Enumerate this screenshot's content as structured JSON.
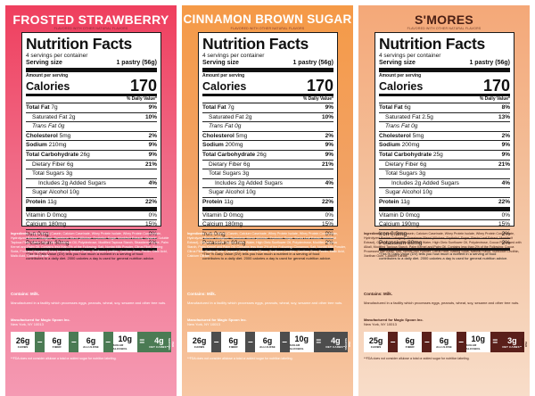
{
  "panels": [
    {
      "flavor": "FROSTED STRAWBERRY",
      "flavor_sub": "FLAVORED WITH OTHER NATURAL FLAVORS",
      "nf": {
        "title": "Nutrition Facts",
        "servings": "4 servings per container",
        "serving_size_label": "Serving size",
        "serving_size_value": "1 pastry (56g)",
        "amount_per_serving": "Amount per serving",
        "calories_label": "Calories",
        "calories_value": "170",
        "dv_header": "% Daily Value*",
        "total_fat": "7g",
        "total_fat_dv": "9%",
        "sat_fat": "2g",
        "sat_fat_dv": "10%",
        "trans_fat": "0g",
        "cholesterol": "5mg",
        "cholesterol_dv": "2%",
        "sodium": "210mg",
        "sodium_dv": "9%",
        "total_carb": "26g",
        "total_carb_dv": "9%",
        "fiber": "6g",
        "fiber_dv": "21%",
        "total_sugars": "3g",
        "added_sugars": "2g",
        "added_sugars_dv": "4%",
        "sugar_alcohol": "10g",
        "protein": "11g",
        "protein_dv": "22%",
        "vit_d": "0mcg",
        "vit_d_dv": "0%",
        "calcium": "180mg",
        "calcium_dv": "15%",
        "iron": "0mg",
        "iron_dv": "0%",
        "potassium": "60mg",
        "potassium_dv": "2%",
        "footnote": "*The % Daily Value (DV) tells you how much a nutrient in a serving of food contributes to a daily diet. 2000 calories a day is used for general nutrition advice."
      },
      "ingredients_lead": "Ingredients:",
      "ingredients": "Protein Blend (Casein, Calcium Caseinate, Whey Protein Isolate, Whey Protein Concentrate, Hydrolyzed Bovine Collagen), Sweetener Blend (Allulose, Erythritol, Sugar, Monkfruit Extract), Glycerin, Soluble Tapioca Fiber, Water, High Oleic Sunflower Oil, Polydextrose, Modified Tapioca Starch, Strawberry Puree, Palm Kernel and Palm Oil. Contains less than 2% of the Following: Salt, Nonfat Milk Powder, Citrus Fiber, Baking Soda, Fruit and Vegetable Juice for color, Natural Flavor, Sunflower Lecithin, Xanthan Gum, Pectin, Citric Acid, Malic Acid, Calcium Citrate.",
      "contains": "Contains: Milk.",
      "facility": "Manufactured in a facility which processes eggs, peanuts, wheat, soy, sesame and other tree nuts.",
      "mfg": "Manufactured for Magic Spoon Inc.",
      "mfg_addr": "New York, NY 10013",
      "macros": [
        {
          "num": "26g",
          "label": "CARBS"
        },
        {
          "num": "6g",
          "label": "FIBER"
        },
        {
          "num": "6g",
          "label": "ALLULOSE"
        },
        {
          "num": "10g",
          "label": "SUGAR ALCOHOL"
        },
        {
          "num": "4g",
          "label": "NET CARBS**"
        }
      ],
      "badge": "PER SERVING",
      "disclaimer": "**FDA does not consider allulose a total or added sugar for nutrition labeling."
    },
    {
      "flavor": "CINNAMON BROWN SUGAR",
      "flavor_sub": "FLAVORED WITH OTHER NATURAL FLAVORS",
      "nf": {
        "title": "Nutrition Facts",
        "servings": "4 servings per container",
        "serving_size_label": "Serving size",
        "serving_size_value": "1 pastry (56g)",
        "amount_per_serving": "Amount per serving",
        "calories_label": "Calories",
        "calories_value": "170",
        "dv_header": "% Daily Value*",
        "total_fat": "7g",
        "total_fat_dv": "9%",
        "sat_fat": "2g",
        "sat_fat_dv": "10%",
        "trans_fat": "0g",
        "cholesterol": "5mg",
        "cholesterol_dv": "2%",
        "sodium": "200mg",
        "sodium_dv": "9%",
        "total_carb": "26g",
        "total_carb_dv": "9%",
        "fiber": "6g",
        "fiber_dv": "21%",
        "total_sugars": "3g",
        "added_sugars": "2g",
        "added_sugars_dv": "4%",
        "sugar_alcohol": "10g",
        "protein": "11g",
        "protein_dv": "22%",
        "vit_d": "0mcg",
        "vit_d_dv": "0%",
        "calcium": "180mg",
        "calcium_dv": "15%",
        "iron": "0mg",
        "iron_dv": "0%",
        "potassium": "60mg",
        "potassium_dv": "2%",
        "footnote": "*The % Daily Value (DV) tells you how much a nutrient in a serving of food contributes to a daily diet. 2000 calories a day is used for general nutrition advice."
      },
      "ingredients_lead": "Ingredients:",
      "ingredients": "Protein Blend (Casein, Calcium Caseinate, Whey Protein Isolate, Whey Protein Concentrate, Hydrolyzed Bovine Collagen), Sweetener Blend (Allulose, Erythritol, Sugar, Stevia Leaf Extract, Monkfruit Extract), Glycerin, Soluble Tapioca Fiber, Water, High Oleic Sunflower Oil, Polydextrose, Modified Tapioca Starch, Palm Kernel and Palm Oil. Contains less than 2% of the Following: Cinnamon, Salt, Nonfat Milk Powder, Citrus Fiber, Baking Soda, Caramel Color, Natural Flavor, Sunflower Lecithin, Xanthan Gum, Pectin, Malic Acid, Calcium Citrate.",
      "contains": "Contains: Milk.",
      "facility": "Manufactured in a facility which processes eggs, peanuts, wheat, soy, sesame and other tree nuts.",
      "mfg": "Manufactured for Magic Spoon Inc.",
      "mfg_addr": "New York, NY 10013",
      "macros": [
        {
          "num": "26g",
          "label": "CARBS"
        },
        {
          "num": "6g",
          "label": "FIBER"
        },
        {
          "num": "6g",
          "label": "ALLULOSE"
        },
        {
          "num": "10g",
          "label": "SUGAR ALCOHOL"
        },
        {
          "num": "4g",
          "label": "NET CARBS**"
        }
      ],
      "badge": "PER SERVING",
      "disclaimer": "**FDA does not consider allulose a total or added sugar for nutrition labeling."
    },
    {
      "flavor": "S'MORES",
      "flavor_sub": "FLAVORED WITH OTHER NATURAL FLAVORS",
      "nf": {
        "title": "Nutrition Facts",
        "servings": "4 servings per container",
        "serving_size_label": "Serving size",
        "serving_size_value": "1 pastry (56g)",
        "amount_per_serving": "Amount per serving",
        "calories_label": "Calories",
        "calories_value": "170",
        "dv_header": "% Daily Value*",
        "total_fat": "6g",
        "total_fat_dv": "8%",
        "sat_fat": "2.5g",
        "sat_fat_dv": "13%",
        "trans_fat": "0g",
        "cholesterol": "5mg",
        "cholesterol_dv": "2%",
        "sodium": "200mg",
        "sodium_dv": "9%",
        "total_carb": "25g",
        "total_carb_dv": "9%",
        "fiber": "6g",
        "fiber_dv": "21%",
        "total_sugars": "3g",
        "added_sugars": "2g",
        "added_sugars_dv": "4%",
        "sugar_alcohol": "10g",
        "protein": "11g",
        "protein_dv": "22%",
        "vit_d": "0mcg",
        "vit_d_dv": "0%",
        "calcium": "190mg",
        "calcium_dv": "15%",
        "iron": "0.3mg",
        "iron_dv": "2%",
        "potassium": "80mg",
        "potassium_dv": "2%",
        "footnote": "*The % Daily Value (DV) tells you how much a nutrient in a serving of food contributes to a daily diet. 2000 calories a day is used for general nutrition advice."
      },
      "ingredients_lead": "Ingredients:",
      "ingredients": "Protein Blend (Casein, Calcium Caseinate, Whey Protein Isolate, Whey Protein Concentrate, Hydrolyzed Bovine Collagen), Sweetener Blend (Allulose, Erythritol, Sugar, Stevia Leaf Extract, Monkfruit Extract), Glycerin, Soluble Tapioca Fiber, Water, High Oleic Sunflower Oil, Polydextrose, Cocoa Processed with Alkali, Modified Tapioca Starch, Palm Kernel and Palm Oil. Contains less than 2% of the Following: Cocoa Processed with Alkali, Salt, Nonfat Milk Powder, Citrus Fiber, Baking Soda, Natural Flavor, Sunflower Lecithin, Xanthan Gum, Calcium Citrate.",
      "contains": "Contains: Milk.",
      "facility": "Manufactured in a facility which processes eggs, peanuts, wheat, soy, sesame and other tree nuts.",
      "mfg": "Manufactured for Magic Spoon Inc.",
      "mfg_addr": "New York, NY 10013",
      "macros": [
        {
          "num": "25g",
          "label": "CARBS"
        },
        {
          "num": "6g",
          "label": "FIBER"
        },
        {
          "num": "6g",
          "label": "ALLULOSE"
        },
        {
          "num": "10g",
          "label": "SUGAR ALCOHOL"
        },
        {
          "num": "3g",
          "label": "NET CARBS**"
        }
      ],
      "badge": "PER SERVING",
      "disclaimer": "**FDA does not consider allulose a total or added sugar for nutrition labeling."
    }
  ]
}
